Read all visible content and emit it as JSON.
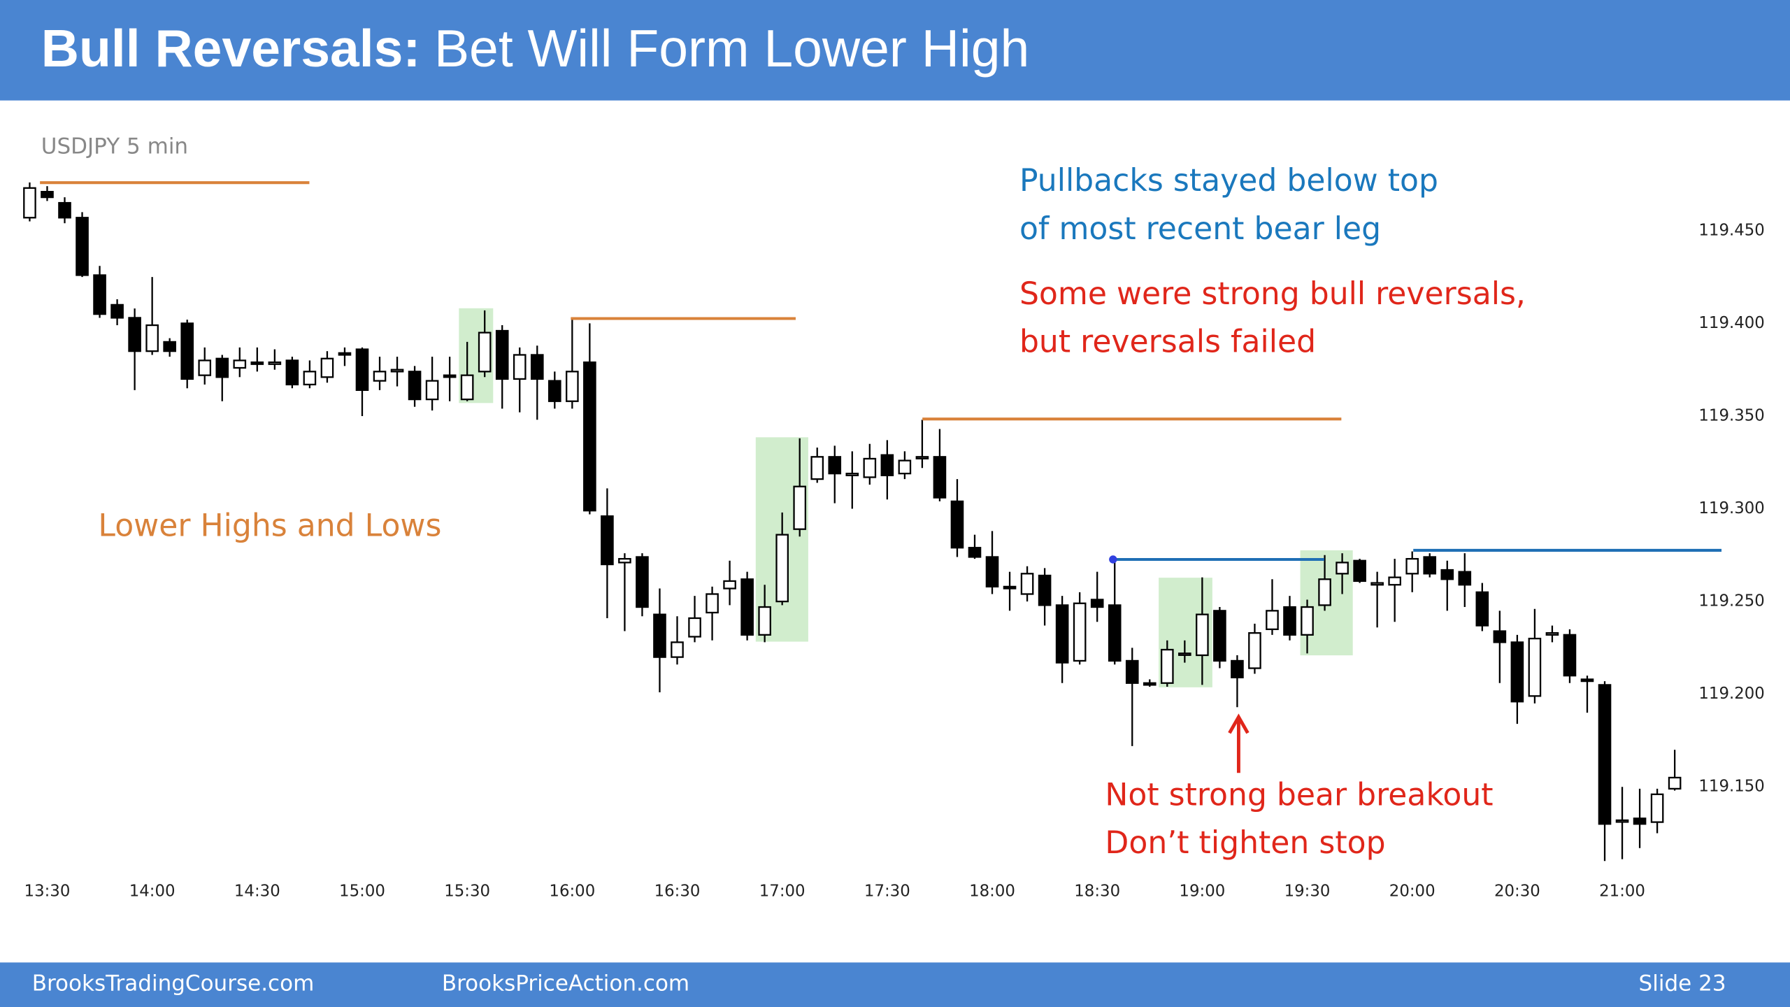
{
  "header": {
    "title_bold": "Bull Reversals:",
    "title_rest": "Bet Will Form Lower High"
  },
  "chart_data": {
    "type": "candlestick",
    "subtitle": "USDJPY 5 min",
    "categories": [
      null,
      "13:30",
      null,
      null,
      null,
      null,
      null,
      "14:00",
      null,
      null,
      null,
      null,
      null,
      "14:30",
      null,
      null,
      null,
      null,
      null,
      "15:00",
      null,
      null,
      null,
      null,
      null,
      "15:30",
      null,
      null,
      null,
      null,
      null,
      "16:00",
      null,
      null,
      null,
      null,
      null,
      "16:30",
      null,
      null,
      null,
      null,
      null,
      "17:00",
      null,
      null,
      null,
      null,
      null,
      "17:30",
      null,
      null,
      null,
      null,
      null,
      "18:00",
      null,
      null,
      null,
      null,
      null,
      "18:30",
      null,
      null,
      null,
      null,
      null,
      "19:00",
      null,
      null,
      null,
      null,
      null,
      "19:30",
      null,
      null,
      null,
      null,
      null,
      "20:00",
      null,
      null,
      null,
      null,
      null,
      "20:30",
      null,
      null,
      null,
      null,
      null,
      "21:00",
      null,
      null,
      null
    ],
    "open": [
      119.457,
      119.471,
      119.465,
      119.457,
      119.426,
      119.41,
      119.403,
      119.385,
      119.39,
      119.4,
      119.372,
      119.381,
      119.376,
      119.379,
      119.378,
      119.38,
      119.367,
      119.371,
      119.384,
      119.386,
      119.369,
      119.374,
      119.374,
      119.359,
      119.372,
      119.359,
      119.374,
      119.396,
      119.37,
      119.383,
      119.369,
      119.358,
      119.379,
      119.296,
      119.271,
      119.274,
      119.243,
      119.22,
      119.231,
      119.244,
      119.257,
      119.262,
      119.232,
      119.25,
      119.289,
      119.316,
      119.328,
      119.318,
      119.317,
      119.329,
      119.319,
      119.328,
      119.328,
      119.304,
      119.279,
      119.274,
      119.258,
      119.254,
      119.264,
      119.248,
      119.218,
      119.251,
      119.248,
      119.218,
      119.206,
      119.206,
      119.222,
      119.221,
      119.245,
      119.218,
      119.214,
      119.235,
      119.247,
      119.232,
      119.248,
      119.265,
      119.272,
      119.259,
      119.259,
      119.265,
      119.274,
      119.267,
      119.266,
      119.255,
      119.234,
      119.228,
      119.199,
      119.232,
      119.232,
      119.208,
      119.205,
      119.132,
      119.133,
      119.131,
      119.149
    ],
    "high": [
      119.476,
      119.474,
      119.468,
      119.46,
      119.431,
      119.413,
      119.408,
      119.425,
      119.392,
      119.402,
      119.387,
      119.383,
      119.387,
      119.387,
      119.386,
      119.382,
      119.38,
      119.385,
      119.387,
      119.387,
      119.382,
      119.382,
      119.377,
      119.382,
      119.382,
      119.39,
      119.407,
      119.399,
      119.387,
      119.388,
      119.374,
      119.402,
      119.4,
      119.311,
      119.276,
      119.276,
      119.257,
      119.242,
      119.253,
      119.258,
      119.272,
      119.266,
      119.259,
      119.298,
      119.338,
      119.333,
      119.334,
      119.331,
      119.335,
      119.337,
      119.331,
      119.348,
      119.343,
      119.316,
      119.286,
      119.288,
      119.266,
      119.269,
      119.268,
      119.253,
      119.255,
      119.266,
      119.272,
      119.225,
      119.208,
      119.229,
      119.229,
      119.263,
      119.247,
      119.221,
      119.238,
      119.262,
      119.253,
      119.251,
      119.275,
      119.276,
      119.273,
      119.266,
      119.273,
      119.277,
      119.276,
      119.272,
      119.276,
      119.26,
      119.245,
      119.232,
      119.246,
      119.237,
      119.235,
      119.21,
      119.207,
      119.15,
      119.149,
      119.149,
      119.17
    ],
    "low": [
      119.455,
      119.466,
      119.454,
      119.425,
      119.403,
      119.399,
      119.364,
      119.383,
      119.382,
      119.365,
      119.367,
      119.358,
      119.371,
      119.374,
      119.375,
      119.365,
      119.365,
      119.368,
      119.377,
      119.35,
      119.364,
      119.366,
      119.355,
      119.353,
      119.358,
      119.358,
      119.371,
      119.354,
      119.352,
      119.348,
      119.354,
      119.354,
      119.297,
      119.241,
      119.234,
      119.242,
      119.201,
      119.216,
      119.228,
      119.229,
      119.248,
      119.229,
      119.228,
      119.248,
      119.285,
      119.314,
      119.303,
      119.3,
      119.313,
      119.305,
      119.316,
      119.322,
      119.304,
      119.274,
      119.273,
      119.254,
      119.245,
      119.25,
      119.237,
      119.206,
      119.216,
      119.239,
      119.216,
      119.172,
      119.204,
      119.204,
      119.217,
      119.205,
      119.214,
      119.193,
      119.211,
      119.232,
      119.229,
      119.222,
      119.245,
      119.254,
      119.26,
      119.236,
      119.239,
      119.255,
      119.263,
      119.245,
      119.247,
      119.234,
      119.206,
      119.184,
      119.195,
      119.228,
      119.206,
      119.19,
      119.11,
      119.111,
      119.117,
      119.125,
      119.148
    ],
    "close": [
      119.473,
      119.468,
      119.457,
      119.426,
      119.405,
      119.403,
      119.385,
      119.399,
      119.385,
      119.37,
      119.38,
      119.371,
      119.38,
      119.378,
      119.379,
      119.367,
      119.374,
      119.381,
      119.383,
      119.364,
      119.374,
      119.375,
      119.359,
      119.369,
      119.371,
      119.372,
      119.395,
      119.37,
      119.383,
      119.37,
      119.358,
      119.374,
      119.299,
      119.27,
      119.273,
      119.247,
      119.22,
      119.228,
      119.241,
      119.254,
      119.261,
      119.232,
      119.247,
      119.286,
      119.312,
      119.328,
      119.319,
      119.319,
      119.327,
      119.318,
      119.326,
      119.328,
      119.306,
      119.279,
      119.274,
      119.258,
      119.257,
      119.265,
      119.248,
      119.217,
      119.249,
      119.247,
      119.218,
      119.206,
      119.205,
      119.224,
      119.222,
      119.243,
      119.218,
      119.209,
      119.233,
      119.245,
      119.232,
      119.247,
      119.262,
      119.271,
      119.261,
      119.26,
      119.263,
      119.273,
      119.265,
      119.262,
      119.259,
      119.237,
      119.228,
      119.196,
      119.23,
      119.233,
      119.21,
      119.207,
      119.13,
      119.132,
      119.13,
      119.146,
      119.155
    ],
    "up_color": "#ffffff",
    "down_color": "#000000",
    "ylim": [
      119.1,
      119.48
    ],
    "yticks": [
      {
        "value": 119.15,
        "label": "119.150"
      },
      {
        "value": 119.2,
        "label": "119.200"
      },
      {
        "value": 119.25,
        "label": "119.250"
      },
      {
        "value": 119.3,
        "label": "119.300"
      },
      {
        "value": 119.35,
        "label": "119.350"
      },
      {
        "value": 119.4,
        "label": "119.400"
      },
      {
        "value": 119.45,
        "label": "119.450"
      }
    ],
    "grid": false
  },
  "annotations": {
    "blue_1": "Pullbacks stayed below top",
    "blue_2": "of most recent bear leg",
    "red_1": "Some were strong bull reversals,",
    "red_2": "but reversals failed",
    "orange": "Lower Highs and Lows",
    "bottom_1": "Not strong bear breakout",
    "bottom_2": "Don’t tighten stop"
  },
  "footer": {
    "left": "BrooksTradingCourse.com",
    "middle": "BrooksPriceAction.com",
    "right": "Slide  23"
  }
}
